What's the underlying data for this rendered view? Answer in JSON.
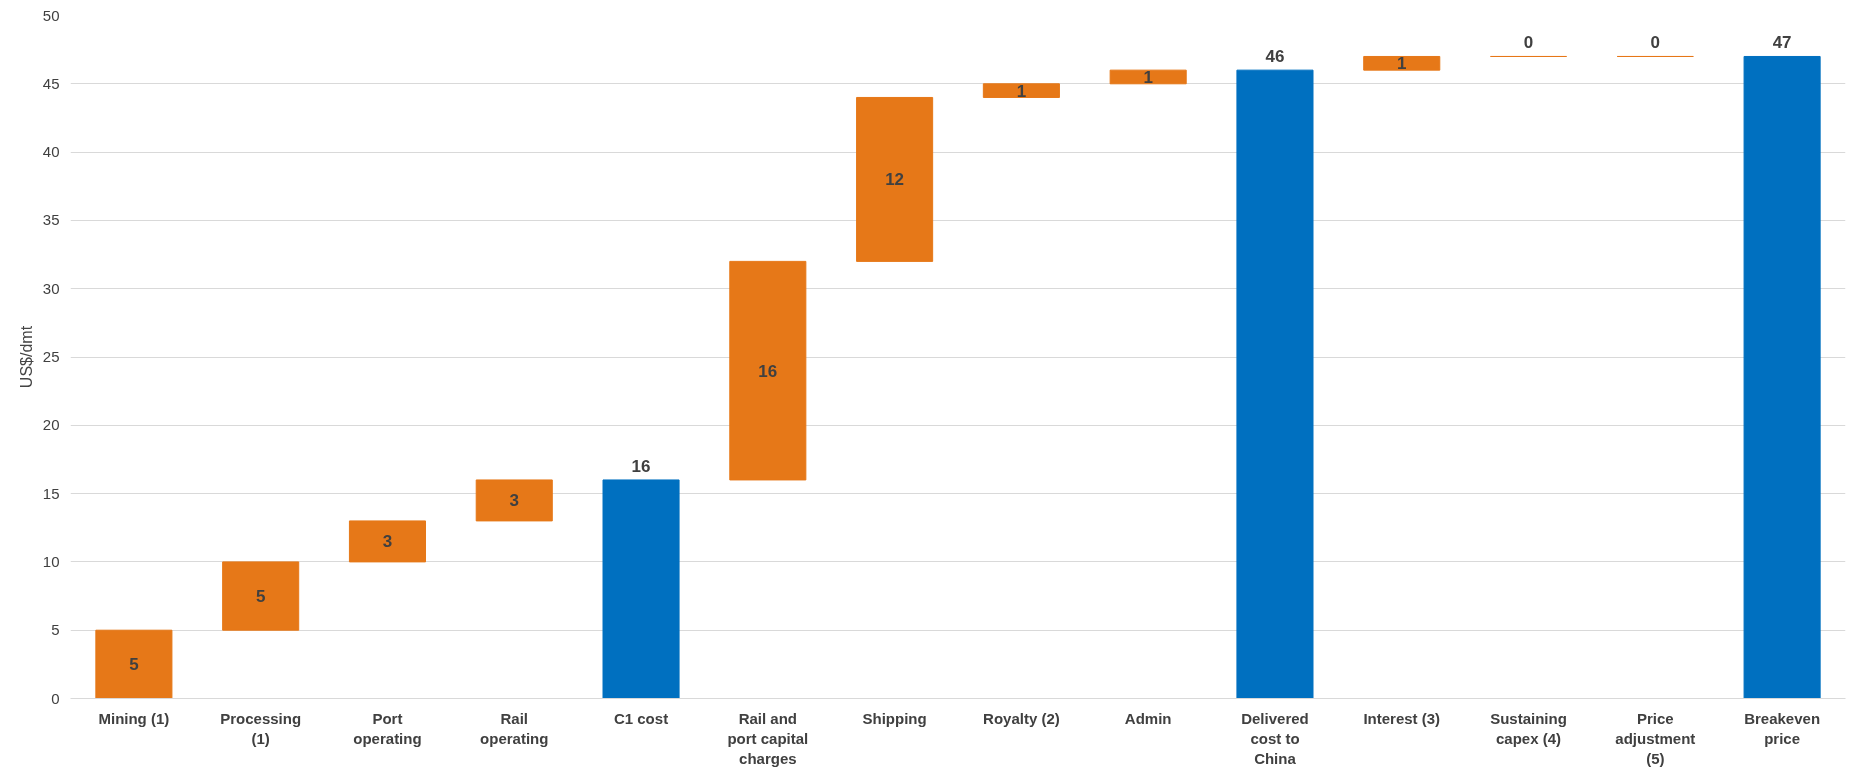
{
  "chart_data": {
    "type": "bar",
    "ylabel": "US$/dmt",
    "categories": [
      "Mining (1)",
      "Processing (1)",
      "Port operating",
      "Rail operating",
      "C1 cost",
      "Rail and port capital charges",
      "Shipping",
      "Royalty (2)",
      "Admin",
      "Delivered cost to China",
      "Interest (3)",
      "Sustaining capex (4)",
      "Price adjustment (5)",
      "Breakeven price"
    ],
    "values": [
      5,
      5,
      3,
      3,
      16,
      16,
      12,
      1,
      1,
      46,
      1,
      0,
      0,
      47
    ],
    "base": [
      0,
      5,
      10,
      13,
      0,
      16,
      32,
      44,
      45,
      0,
      46,
      47,
      47,
      0
    ],
    "colors": [
      "#e67818",
      "#e67818",
      "#e67818",
      "#e67818",
      "#0070c0",
      "#e67818",
      "#e67818",
      "#e67818",
      "#e67818",
      "#0070c0",
      "#e67818",
      "#e67818",
      "#e67818",
      "#0070c0"
    ],
    "ylim": [
      0,
      50
    ],
    "yticks": [
      0,
      5,
      10,
      15,
      20,
      25,
      30,
      35,
      40,
      45,
      50
    ],
    "grid": "y",
    "data_labels": true
  }
}
